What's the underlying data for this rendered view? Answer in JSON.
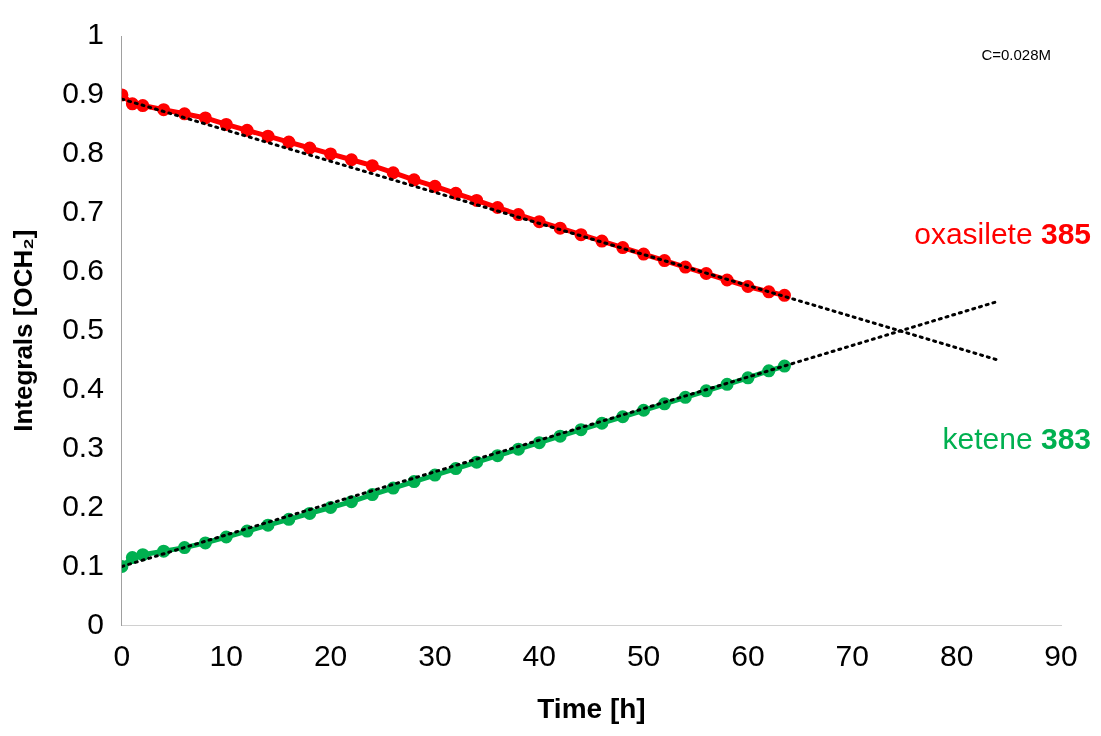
{
  "chart_data": {
    "type": "line",
    "xlabel": "Time [h]",
    "ylabel": "Integrals [OCH₂]",
    "xlim": [
      0,
      90
    ],
    "xticks": [
      0,
      10,
      20,
      30,
      40,
      50,
      60,
      70,
      80,
      90
    ],
    "ylim": [
      0,
      1
    ],
    "yticks": [
      0,
      0.1,
      0.2,
      0.3,
      0.4,
      0.5,
      0.6,
      0.7,
      0.8,
      0.9,
      1
    ],
    "grid": false,
    "legend": false,
    "marker": "circle",
    "annotations": [
      "C=0.028M"
    ],
    "series": [
      {
        "name": "oxasilete 385",
        "color": "#ff0000",
        "x": [
          0,
          1,
          2,
          4,
          6,
          8,
          10,
          12,
          14,
          16,
          18,
          20,
          22,
          24,
          26,
          28,
          30,
          32,
          34,
          36,
          38,
          40,
          42,
          44,
          46,
          48,
          50,
          52,
          54,
          56,
          58,
          60,
          62,
          63.5
        ],
        "values": [
          0.9,
          0.885,
          0.882,
          0.875,
          0.868,
          0.861,
          0.85,
          0.84,
          0.83,
          0.82,
          0.81,
          0.8,
          0.79,
          0.78,
          0.768,
          0.756,
          0.745,
          0.733,
          0.721,
          0.709,
          0.697,
          0.685,
          0.674,
          0.663,
          0.652,
          0.641,
          0.63,
          0.619,
          0.608,
          0.597,
          0.586,
          0.575,
          0.566,
          0.56
        ]
      },
      {
        "name": "ketene 383",
        "color": "#00b050",
        "x": [
          0,
          1,
          2,
          4,
          6,
          8,
          10,
          12,
          14,
          16,
          18,
          20,
          22,
          24,
          26,
          28,
          30,
          32,
          34,
          36,
          38,
          40,
          42,
          44,
          46,
          48,
          50,
          52,
          54,
          56,
          58,
          60,
          62,
          63.5
        ],
        "values": [
          0.1,
          0.115,
          0.12,
          0.126,
          0.132,
          0.14,
          0.15,
          0.16,
          0.17,
          0.18,
          0.19,
          0.2,
          0.21,
          0.222,
          0.233,
          0.244,
          0.255,
          0.266,
          0.277,
          0.288,
          0.299,
          0.31,
          0.321,
          0.332,
          0.343,
          0.354,
          0.365,
          0.376,
          0.387,
          0.398,
          0.409,
          0.42,
          0.432,
          0.44
        ]
      },
      {
        "type": "line",
        "color": "#000000",
        "marker": "none",
        "line_style": "dotted",
        "x": [
          0,
          84
        ],
        "values": [
          0.893,
          0.45
        ]
      },
      {
        "type": "line",
        "color": "#000000",
        "marker": "none",
        "line_style": "dotted",
        "x": [
          0,
          84
        ],
        "values": [
          0.1,
          0.55
        ]
      }
    ]
  }
}
